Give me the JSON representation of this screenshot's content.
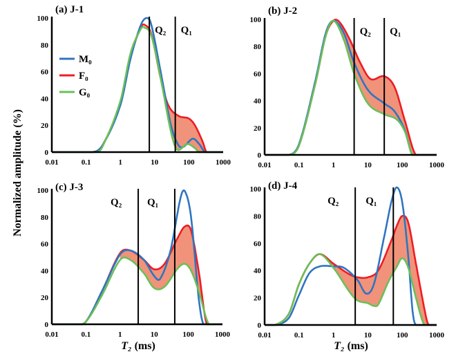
{
  "colors": {
    "M0": "#2e75c0",
    "F0": "#ee1c24",
    "G0": "#6bbf59",
    "shade": "#f0937a"
  },
  "ylabel": "Normalized amplitude (%)",
  "xlabel_main": "T₂",
  "xlabel_unit": " (ms)",
  "chart_data": [
    {
      "type": "line",
      "title": "(a) J-1",
      "xscale": "log",
      "xlim": [
        0.01,
        1000
      ],
      "ylim": [
        0,
        100
      ],
      "xticks": [
        "0.01",
        "0.1",
        "1",
        "10",
        "100",
        "1000"
      ],
      "yticks": [
        "0",
        "20",
        "40",
        "60",
        "80",
        "100"
      ],
      "legend": "left",
      "legend_entries": [
        "M₀",
        "F₀",
        "G₀"
      ],
      "vlines": [
        {
          "x": 7,
          "label": "Q₂"
        },
        {
          "x": 40,
          "label": "Q₁"
        }
      ],
      "shade_between": [
        "F0",
        "G0"
      ],
      "shade_range": [
        25,
        330
      ],
      "series": [
        {
          "name": "M₀",
          "key": "M0",
          "x": [
            0.01,
            0.15,
            0.3,
            1,
            2,
            4,
            6,
            8,
            15,
            30,
            50,
            70,
            130,
            200,
            300,
            1000
          ],
          "y": [
            0,
            0,
            5,
            35,
            70,
            95,
            100,
            95,
            60,
            20,
            5,
            4,
            10,
            6,
            0,
            0
          ]
        },
        {
          "name": "F₀",
          "key": "F0",
          "x": [
            0.01,
            0.15,
            0.3,
            1,
            2,
            4,
            5,
            8,
            15,
            25,
            50,
            100,
            150,
            250,
            330,
            1000
          ],
          "y": [
            0,
            0,
            5,
            37,
            72,
            93,
            95,
            88,
            55,
            35,
            27,
            25,
            20,
            8,
            0,
            0
          ]
        },
        {
          "name": "G₀",
          "key": "G0",
          "x": [
            0.01,
            0.2,
            0.3,
            1,
            2,
            4,
            5,
            8,
            15,
            30,
            45,
            90,
            150,
            200,
            1000
          ],
          "y": [
            0,
            0,
            4,
            38,
            74,
            92,
            93,
            87,
            55,
            15,
            2,
            6,
            3,
            0,
            0
          ]
        }
      ]
    },
    {
      "type": "line",
      "title": "(b) J-2",
      "xscale": "log",
      "xlim": [
        0.01,
        1000
      ],
      "ylim": [
        0,
        100
      ],
      "xticks": [
        "0.01",
        "0.1",
        "1",
        "10",
        "100",
        "1000"
      ],
      "yticks": [
        "0",
        "20",
        "40",
        "60",
        "80",
        "100"
      ],
      "vlines": [
        {
          "x": 4,
          "label": "Q₂"
        },
        {
          "x": 30,
          "label": "Q₁"
        }
      ],
      "shade_between": [
        "F0",
        "G0"
      ],
      "shade_range": [
        1.5,
        250
      ],
      "series": [
        {
          "name": "M₀",
          "key": "M0",
          "x": [
            0.01,
            0.05,
            0.1,
            0.3,
            0.6,
            1,
            2,
            4,
            10,
            30,
            60,
            120,
            200,
            1000
          ],
          "y": [
            0,
            0,
            8,
            55,
            90,
            99,
            90,
            68,
            48,
            38,
            32,
            18,
            0,
            0
          ]
        },
        {
          "name": "F₀",
          "key": "F0",
          "x": [
            0.01,
            0.05,
            0.1,
            0.3,
            0.6,
            1,
            1.5,
            3,
            6,
            12,
            30,
            60,
            120,
            250,
            1000
          ],
          "y": [
            0,
            0,
            7,
            53,
            88,
            99,
            98,
            85,
            68,
            56,
            58,
            50,
            25,
            0,
            0
          ]
        },
        {
          "name": "G₀",
          "key": "G0",
          "x": [
            0.01,
            0.05,
            0.1,
            0.3,
            0.6,
            1,
            2,
            4,
            10,
            30,
            70,
            120,
            200,
            1000
          ],
          "y": [
            0,
            0,
            7,
            53,
            88,
            99,
            85,
            60,
            38,
            30,
            26,
            17,
            0,
            0
          ]
        }
      ]
    },
    {
      "type": "line",
      "title": "(c) J-3",
      "xscale": "log",
      "xlim": [
        0.01,
        1000
      ],
      "ylim": [
        0,
        100
      ],
      "xticks": [
        "0.01",
        "0.1",
        "1",
        "10",
        "100",
        "1000"
      ],
      "yticks": [
        "0",
        "20",
        "40",
        "60",
        "80",
        "100"
      ],
      "vlines": [
        {
          "x": 3.4,
          "label": "Q₂"
        },
        {
          "x": 40,
          "label": "Q₁"
        }
      ],
      "shade_between": [
        "F0",
        "G0"
      ],
      "shade_range": [
        1,
        400
      ],
      "series": [
        {
          "name": "M₀",
          "key": "M0",
          "x": [
            0.01,
            0.05,
            0.1,
            0.3,
            1,
            2,
            5,
            10,
            15,
            30,
            60,
            80,
            120,
            200,
            280,
            1000
          ],
          "y": [
            0,
            0,
            2,
            25,
            52,
            55,
            48,
            36,
            34,
            55,
            95,
            99,
            80,
            20,
            0,
            0
          ]
        },
        {
          "name": "F₀",
          "key": "F0",
          "x": [
            0.01,
            0.05,
            0.1,
            0.3,
            1,
            2,
            5,
            10,
            20,
            50,
            80,
            120,
            200,
            350,
            1000
          ],
          "y": [
            0,
            0,
            2,
            25,
            53,
            55,
            48,
            41,
            45,
            65,
            73,
            70,
            40,
            0,
            0
          ]
        },
        {
          "name": "G₀",
          "key": "G0",
          "x": [
            0.01,
            0.05,
            0.1,
            0.3,
            1,
            2,
            5,
            10,
            20,
            50,
            80,
            120,
            200,
            400,
            1000
          ],
          "y": [
            0,
            0,
            2,
            22,
            48,
            48,
            38,
            27,
            28,
            42,
            45,
            40,
            25,
            0,
            0
          ]
        }
      ]
    },
    {
      "type": "line",
      "title": "(d) J-4",
      "xscale": "log",
      "xlim": [
        0.01,
        1000
      ],
      "ylim": [
        0,
        100
      ],
      "xticks": [
        "0.01",
        "0.1",
        "1",
        "10",
        "100",
        "1000"
      ],
      "yticks": [
        "0",
        "20",
        "40",
        "60",
        "80",
        "100"
      ],
      "vlines": [
        {
          "x": 4.3,
          "label": "Q₂"
        },
        {
          "x": 55,
          "label": "Q₁"
        }
      ],
      "shade_between": [
        "F0",
        "G0"
      ],
      "shade_range": [
        0.5,
        600
      ],
      "series": [
        {
          "name": "M₀",
          "key": "M0",
          "x": [
            0.01,
            0.02,
            0.05,
            0.1,
            0.2,
            0.4,
            1,
            2,
            5,
            9,
            15,
            30,
            50,
            70,
            100,
            150,
            200,
            250,
            1000
          ],
          "y": [
            0,
            0,
            5,
            22,
            38,
            43,
            43,
            42,
            33,
            23,
            30,
            65,
            92,
            101,
            90,
            50,
            10,
            0,
            0
          ]
        },
        {
          "name": "F₀",
          "key": "F0",
          "x": [
            0.01,
            0.02,
            0.05,
            0.1,
            0.2,
            0.4,
            1,
            3,
            5,
            10,
            20,
            50,
            70,
            100,
            150,
            250,
            500,
            600,
            1000
          ],
          "y": [
            0,
            0,
            8,
            30,
            45,
            52,
            45,
            37,
            35,
            35,
            40,
            63,
            73,
            80,
            75,
            45,
            5,
            0,
            0
          ]
        },
        {
          "name": "G₀",
          "key": "G0",
          "x": [
            0.01,
            0.02,
            0.05,
            0.1,
            0.2,
            0.4,
            1,
            3,
            5,
            10,
            15,
            20,
            40,
            70,
            100,
            150,
            250,
            400,
            500,
            1000
          ],
          "y": [
            0,
            0,
            8,
            30,
            45,
            52,
            42,
            24,
            18,
            16,
            14,
            15,
            32,
            43,
            49,
            42,
            20,
            2,
            0,
            0
          ]
        }
      ]
    }
  ]
}
